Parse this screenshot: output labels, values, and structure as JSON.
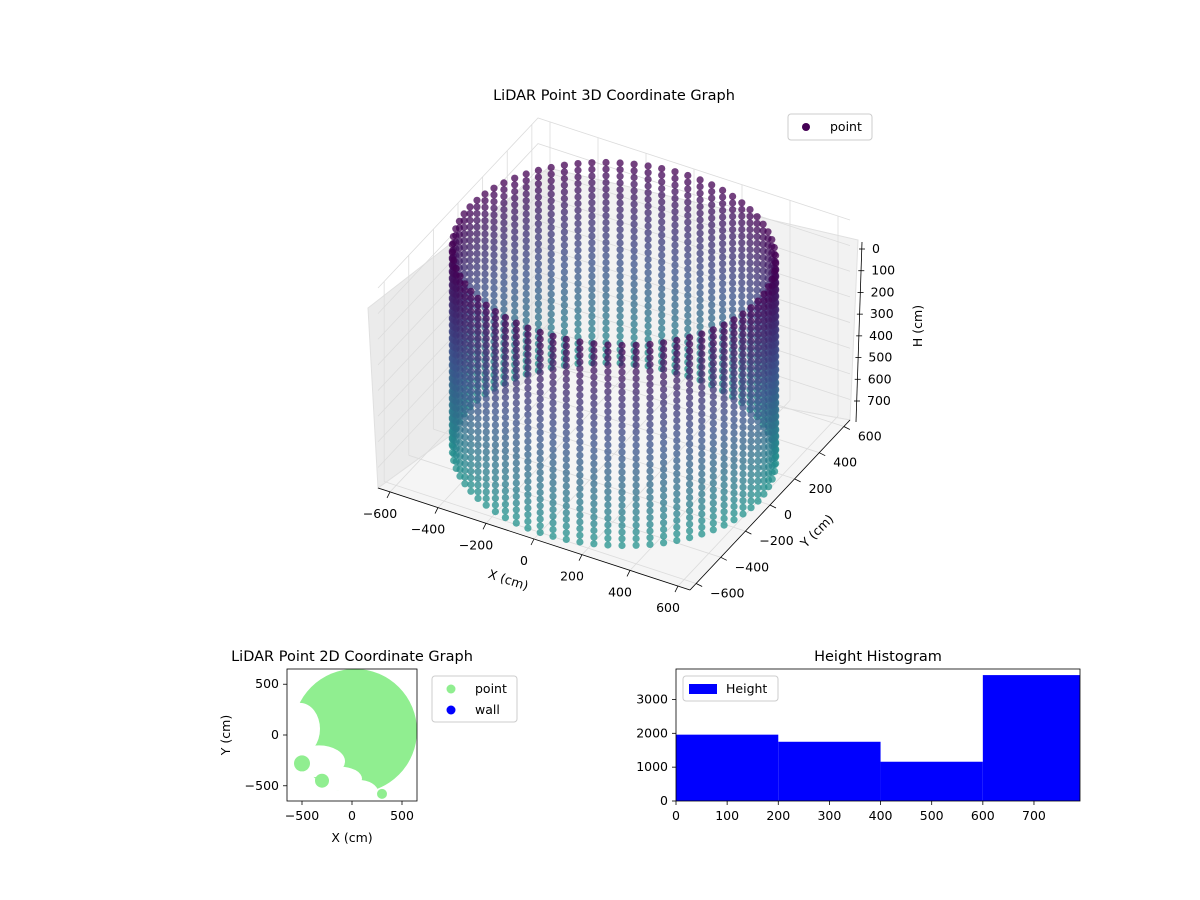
{
  "chart_data": [
    {
      "type": "scatter",
      "title": "LiDAR Point 3D Coordinate Graph",
      "xlabel": "X (cm)",
      "ylabel": "Y (cm)",
      "zlabel": "H (cm)",
      "xlim": [
        -650,
        650
      ],
      "ylim": [
        -650,
        650
      ],
      "zlim": [
        0,
        780
      ],
      "z_inverted": true,
      "x_ticks": [
        "−600",
        "−400",
        "−200",
        "0",
        "200",
        "400",
        "600"
      ],
      "y_ticks": [
        "−600",
        "−400",
        "−200",
        "0",
        "200",
        "400",
        "600"
      ],
      "z_ticks": [
        "0",
        "100",
        "200",
        "300",
        "400",
        "500",
        "600",
        "700"
      ],
      "legend": [
        "point"
      ],
      "legend_position": "top-right",
      "grid": true,
      "colormap": [
        "#440154",
        "#3b528b",
        "#21918c"
      ],
      "series": [
        {
          "name": "point",
          "shape": "cylindrical wall",
          "radius_cm": 600,
          "h_range": [
            0,
            780
          ]
        }
      ]
    },
    {
      "type": "scatter",
      "title": "LiDAR Point 2D Coordinate Graph",
      "xlabel": "X (cm)",
      "ylabel": "Y (cm)",
      "xlim": [
        -650,
        650
      ],
      "ylim": [
        -650,
        650
      ],
      "x_ticks": [
        "−500",
        "0",
        "500"
      ],
      "y_ticks": [
        "500",
        "0",
        "−500"
      ],
      "legend_position": "outside-right",
      "series": [
        {
          "name": "point",
          "color": "#90ee90"
        },
        {
          "name": "wall",
          "color": "#0000ff"
        }
      ]
    },
    {
      "type": "bar",
      "title": "Height Histogram",
      "bins": [
        [
          0,
          200
        ],
        [
          200,
          400
        ],
        [
          400,
          600
        ],
        [
          600,
          790
        ]
      ],
      "values": [
        1960,
        1750,
        1160,
        3720
      ],
      "xlim": [
        0,
        790
      ],
      "ylim": [
        0,
        3900
      ],
      "x_ticks": [
        "0",
        "100",
        "200",
        "300",
        "400",
        "500",
        "600",
        "700"
      ],
      "y_ticks": [
        "0",
        "1000",
        "2000",
        "3000"
      ],
      "color": "#0000ff",
      "legend": [
        "Height"
      ],
      "legend_position": "top-left"
    }
  ]
}
